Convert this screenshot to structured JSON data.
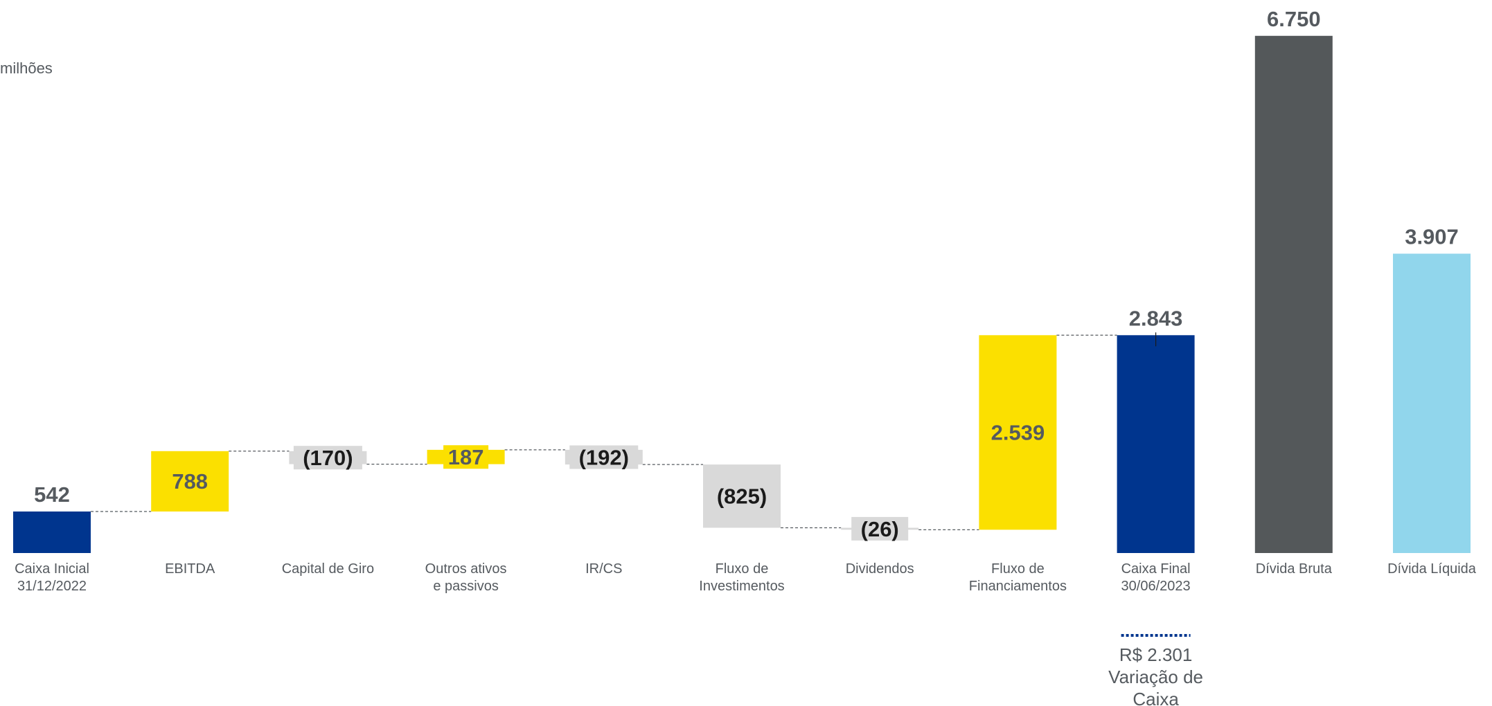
{
  "unit_label": "milhões",
  "colors": {
    "navy": "#00358e",
    "yellow": "#fbe000",
    "grey_bar": "#d9d9d9",
    "dark_grey": "#54585a",
    "light_blue": "#91d6ec",
    "label_dark": "#555a5f",
    "label_black": "#1a1a1a"
  },
  "chart_data": {
    "type": "bar",
    "subtype": "waterfall",
    "title": "",
    "xlabel": "",
    "ylabel": "",
    "grid": false,
    "legend": "none",
    "ylim": [
      0,
      7250
    ],
    "items": [
      {
        "category": [
          "Caixa Inicial",
          "31/12/2022"
        ],
        "value": 542,
        "label": "542",
        "kind": "total",
        "color": "#00358e"
      },
      {
        "category": [
          "EBITDA"
        ],
        "value": 788,
        "label": "788",
        "kind": "delta",
        "color": "#fbe000"
      },
      {
        "category": [
          "Capital de Giro"
        ],
        "value": -170,
        "label": "(170)",
        "kind": "delta",
        "color": "#d9d9d9"
      },
      {
        "category": [
          "Outros ativos",
          "e passivos"
        ],
        "value": 187,
        "label": "187",
        "kind": "delta",
        "color": "#fbe000"
      },
      {
        "category": [
          "IR/CS"
        ],
        "value": -192,
        "label": "(192)",
        "kind": "delta",
        "color": "#d9d9d9"
      },
      {
        "category": [
          "Fluxo de",
          "Investimentos"
        ],
        "value": -825,
        "label": "(825)",
        "kind": "delta",
        "color": "#d9d9d9"
      },
      {
        "category": [
          "Dividendos"
        ],
        "value": -26,
        "label": "(26)",
        "kind": "delta",
        "color": "#d9d9d9"
      },
      {
        "category": [
          "Fluxo de",
          "Financiamentos"
        ],
        "value": 2539,
        "label": "2.539",
        "kind": "delta",
        "color": "#fbe000"
      },
      {
        "category": [
          "Caixa Final",
          "30/06/2023"
        ],
        "value": 2843,
        "label": "2.843",
        "kind": "total",
        "color": "#00358e"
      },
      {
        "category": [
          "Dívida Bruta"
        ],
        "value": 6750,
        "label": "6.750",
        "kind": "total",
        "color": "#54585a"
      },
      {
        "category": [
          "Dívida Líquida"
        ],
        "value": 3907,
        "label": "3.907",
        "kind": "total",
        "color": "#91d6ec"
      }
    ],
    "annotation": {
      "lines": [
        "R$ 2.301",
        "Variação de",
        "Caixa"
      ],
      "under_category_index": 8
    }
  }
}
